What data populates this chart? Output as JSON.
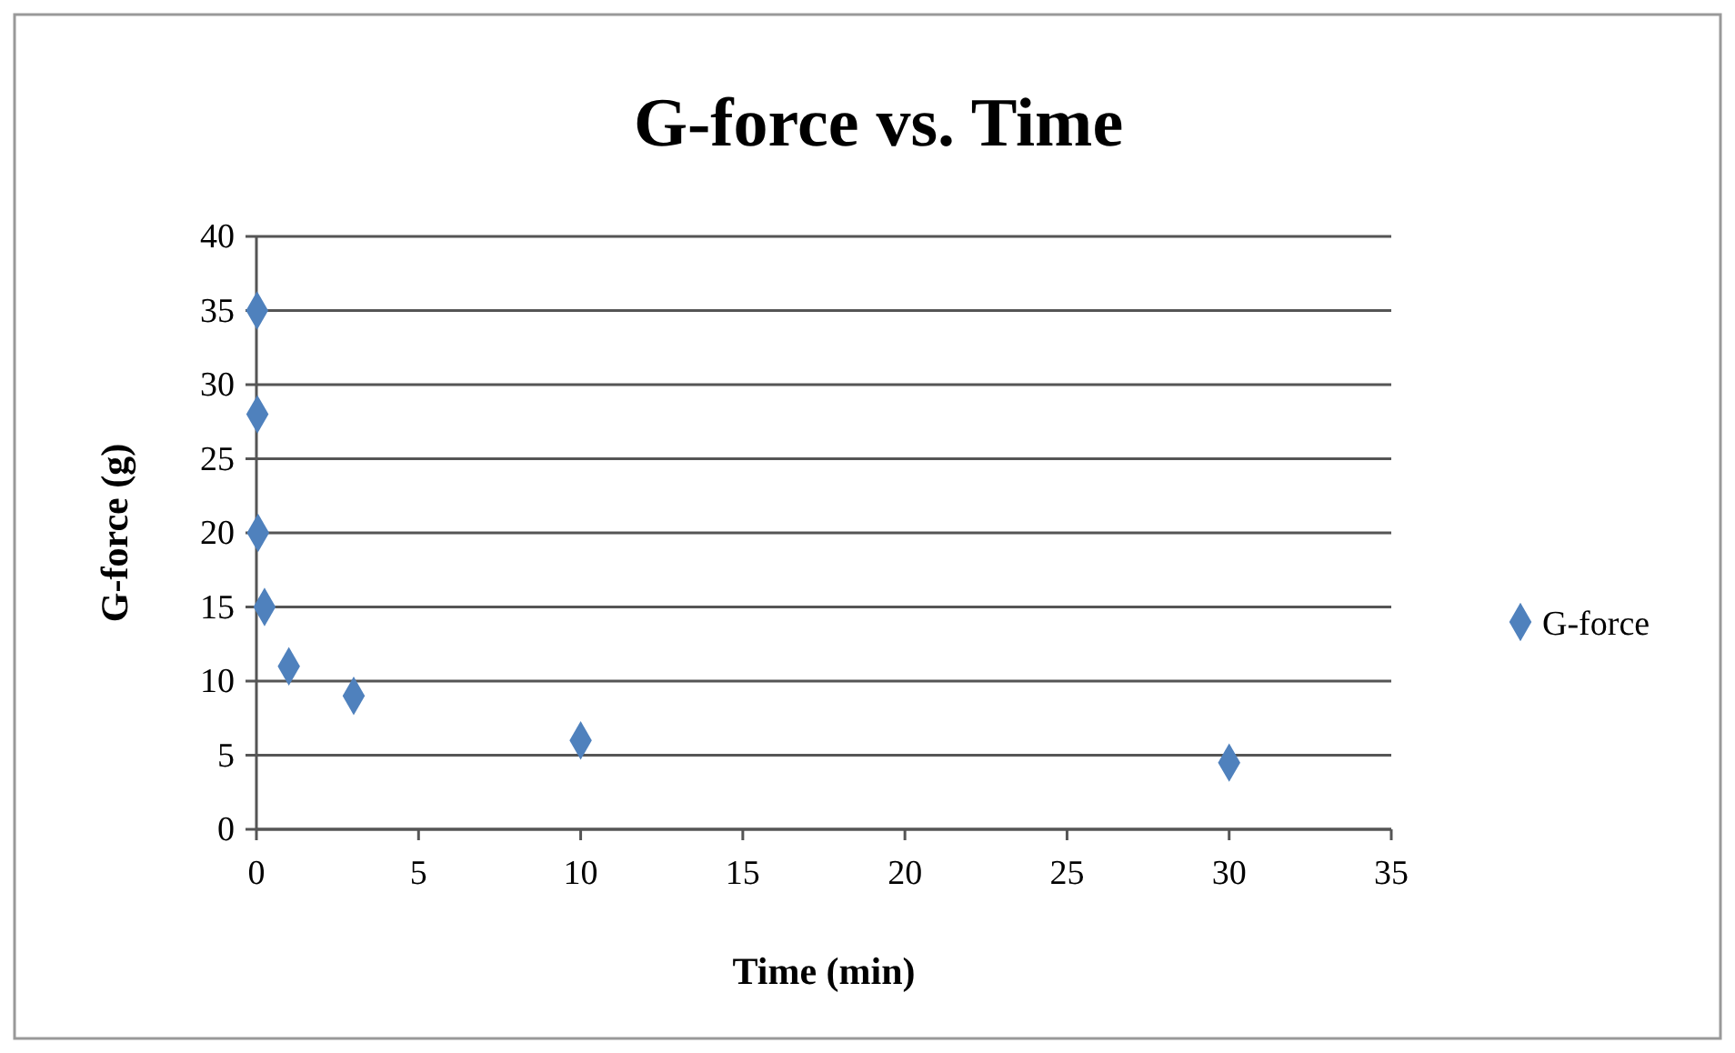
{
  "chart_data": {
    "type": "scatter",
    "title": "G-force vs. Time",
    "xlabel": "Time (min)",
    "ylabel": "G-force (g)",
    "x": [
      0.02,
      0.03,
      0.05,
      0.25,
      1,
      3,
      10,
      30
    ],
    "series": [
      {
        "name": "G-force",
        "color": "#4f81bd",
        "values": [
          35,
          28,
          20,
          15,
          11,
          9,
          6,
          4.5
        ]
      }
    ],
    "xlim": [
      0,
      35
    ],
    "xticks": [
      0,
      5,
      10,
      15,
      20,
      25,
      30,
      35
    ],
    "ylim": [
      0,
      40
    ],
    "yticks": [
      0,
      5,
      10,
      15,
      20,
      25,
      30,
      35,
      40
    ],
    "grid": "y",
    "legend": "right",
    "marker": "diamond"
  }
}
